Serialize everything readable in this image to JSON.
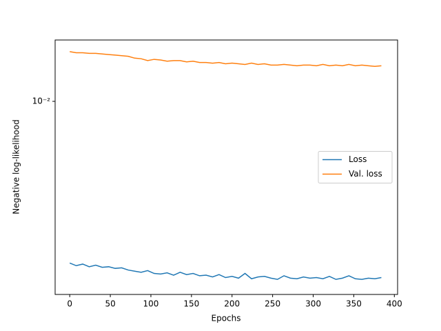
{
  "chart_data": {
    "type": "line",
    "xlabel": "Epochs",
    "ylabel": "Negative log-likelihood",
    "x": [
      0,
      8,
      16,
      24,
      32,
      40,
      48,
      56,
      64,
      72,
      80,
      88,
      96,
      104,
      112,
      120,
      128,
      136,
      144,
      152,
      160,
      168,
      176,
      184,
      192,
      200,
      208,
      216,
      224,
      232,
      240,
      248,
      256,
      264,
      272,
      280,
      288,
      296,
      304,
      312,
      320,
      328,
      336,
      344,
      352,
      360,
      368,
      376,
      384
    ],
    "series": [
      {
        "name": "Loss",
        "color": "#1f77b4",
        "values": [
          0.00185,
          0.0018,
          0.00183,
          0.00178,
          0.00181,
          0.00177,
          0.00178,
          0.00175,
          0.00176,
          0.00172,
          0.0017,
          0.00168,
          0.00171,
          0.00166,
          0.00165,
          0.00167,
          0.00163,
          0.00168,
          0.00164,
          0.00166,
          0.00162,
          0.00163,
          0.0016,
          0.00164,
          0.00159,
          0.00161,
          0.00158,
          0.00166,
          0.00157,
          0.0016,
          0.00161,
          0.00158,
          0.00156,
          0.00162,
          0.00158,
          0.00157,
          0.0016,
          0.00158,
          0.00159,
          0.00157,
          0.00161,
          0.00156,
          0.00158,
          0.00162,
          0.00157,
          0.00156,
          0.00158,
          0.00157,
          0.00159
        ]
      },
      {
        "name": "Val. loss",
        "color": "#ff7f0e",
        "values": [
          0.0168,
          0.0166,
          0.0166,
          0.0165,
          0.0165,
          0.0164,
          0.0163,
          0.0162,
          0.0161,
          0.016,
          0.0157,
          0.0156,
          0.0153,
          0.0155,
          0.0154,
          0.0152,
          0.0153,
          0.0153,
          0.0151,
          0.0152,
          0.015,
          0.015,
          0.0149,
          0.015,
          0.0148,
          0.0149,
          0.0148,
          0.0147,
          0.0149,
          0.0147,
          0.0148,
          0.0146,
          0.0146,
          0.0147,
          0.0146,
          0.0145,
          0.0146,
          0.0146,
          0.0145,
          0.0147,
          0.0145,
          0.0146,
          0.0145,
          0.0147,
          0.0145,
          0.0146,
          0.0145,
          0.0144,
          0.0145
        ]
      }
    ],
    "xlim": [
      -18,
      404
    ],
    "xticks": [
      0,
      50,
      100,
      150,
      200,
      250,
      300,
      350,
      400
    ],
    "ylim": [
      0.001333,
      0.01897
    ],
    "yscale": "log",
    "yticks": [
      {
        "value": 0.01,
        "label": "10⁻²"
      }
    ],
    "legend": "center right",
    "grid": false
  }
}
